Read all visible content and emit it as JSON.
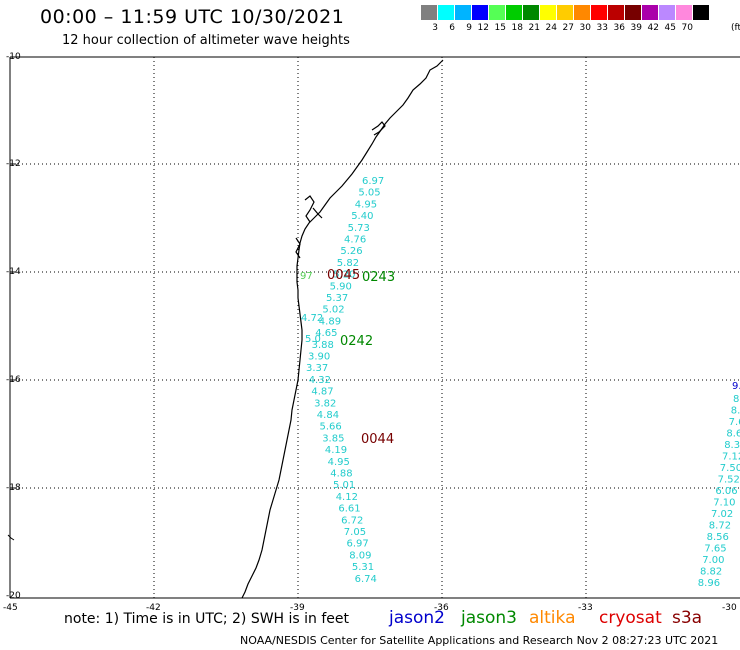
{
  "header": {
    "title": "00:00 – 11:59 UTC 10/30/2021",
    "subtitle": "12 hour collection of altimeter wave heights"
  },
  "legend": {
    "unit": "(ft)",
    "colors": [
      "#808080",
      "#00ffff",
      "#00b4ff",
      "#0000ff",
      "#55ff55",
      "#00cc00",
      "#008800",
      "#ffff00",
      "#ffcc00",
      "#ff8800",
      "#ff0000",
      "#bb0000",
      "#770000",
      "#aa00aa",
      "#bb88ff",
      "#ff88dd",
      "#000000"
    ],
    "labels": [
      "3",
      "6",
      "9",
      "12",
      "15",
      "18",
      "21",
      "24",
      "27",
      "30",
      "33",
      "36",
      "39",
      "42",
      "45",
      "70"
    ]
  },
  "axes": {
    "lat_labels": [
      "-10",
      "-12",
      "-14",
      "-16",
      "-18",
      "-20"
    ],
    "lon_labels": [
      "-45",
      "-42",
      "-39",
      "-36",
      "-33",
      "-30"
    ]
  },
  "track_primary": {
    "color": "#22cccc",
    "values": [
      "6.97",
      "5.05",
      "4.95",
      "5.40",
      "5.73",
      "4.76",
      "5.26",
      "5.82",
      "5.20",
      "5.90",
      "5.37",
      "5.02",
      "4.89",
      "4.65",
      "3.88",
      "3.90",
      "3.37",
      "4.32",
      "4.87",
      "3.82",
      "4.84",
      "5.66",
      "3.85",
      "4.19",
      "4.95",
      "4.88",
      "5.01",
      "4.12",
      "6.61",
      "6.72",
      "7.05",
      "6.97",
      "8.09",
      "5.31",
      "6.74"
    ]
  },
  "track_secondary": {
    "color": "#22cccc",
    "values": [
      "8.",
      "8.",
      "7.6",
      "8.6",
      "8.38",
      "7.12",
      "7.50",
      "7.52",
      "6.06",
      "7.10",
      "7.02",
      "8.72",
      "8.56",
      "7.65",
      "7.00",
      "8.82",
      "8.96"
    ]
  },
  "extra_labels": {
    "left_green": "97",
    "left_cyan": "4.72",
    "left_cyan2": "5.0",
    "right_blue": "9."
  },
  "time_tags": [
    {
      "text": "0045",
      "color": "#770000"
    },
    {
      "text": "0243",
      "color": "#008800"
    },
    {
      "text": "0242",
      "color": "#008800"
    },
    {
      "text": "0044",
      "color": "#770000"
    }
  ],
  "footer": {
    "note": "note: 1) Time is in UTC; 2) SWH is in feet",
    "satellites": [
      {
        "name": "jason2",
        "color": "#0000cc"
      },
      {
        "name": "jason3",
        "color": "#008800"
      },
      {
        "name": "altika",
        "color": "#ff8800"
      },
      {
        "name": "cryosat",
        "color": "#dd0000"
      },
      {
        "name": "s3a",
        "color": "#880000"
      }
    ],
    "credit": "NOAA/NESDIS Center for Satellite Applications and Research    Nov  2 08:27:23 UTC 2021"
  }
}
